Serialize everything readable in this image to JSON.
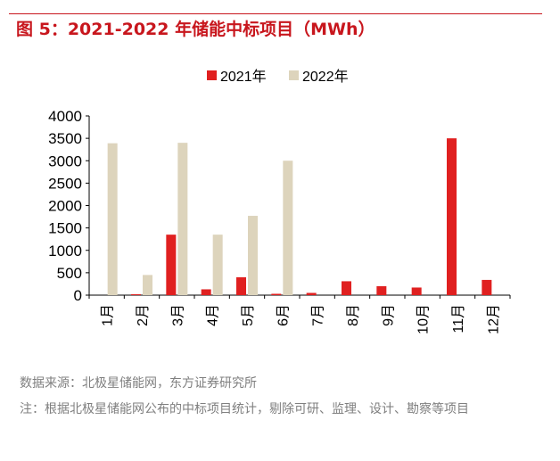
{
  "figure": {
    "title": "图 5：2021-2022 年储能中标项目（MWh）",
    "source": "数据来源：北极星储能网，东方证券研究所",
    "note": "注：根据北极星储能网公布的中标项目统计，剔除可研、监理、设计、勘察等项目"
  },
  "chart_data": {
    "type": "bar",
    "categories": [
      "1月",
      "2月",
      "3月",
      "4月",
      "5月",
      "6月",
      "7月",
      "8月",
      "9月",
      "10月",
      "11月",
      "12月"
    ],
    "series": [
      {
        "name": "2021年",
        "color": "#e02020",
        "values": [
          0,
          20,
          1350,
          130,
          400,
          30,
          50,
          310,
          200,
          170,
          3500,
          340
        ]
      },
      {
        "name": "2022年",
        "color": "#ddd4bc",
        "values": [
          3390,
          450,
          3400,
          1350,
          1770,
          3000,
          0,
          0,
          0,
          0,
          0,
          0
        ]
      }
    ],
    "ylim": [
      0,
      4000
    ],
    "yticks": [
      0,
      500,
      1000,
      1500,
      2000,
      2500,
      3000,
      3500,
      4000
    ],
    "legend": "top-center",
    "grid": false
  }
}
